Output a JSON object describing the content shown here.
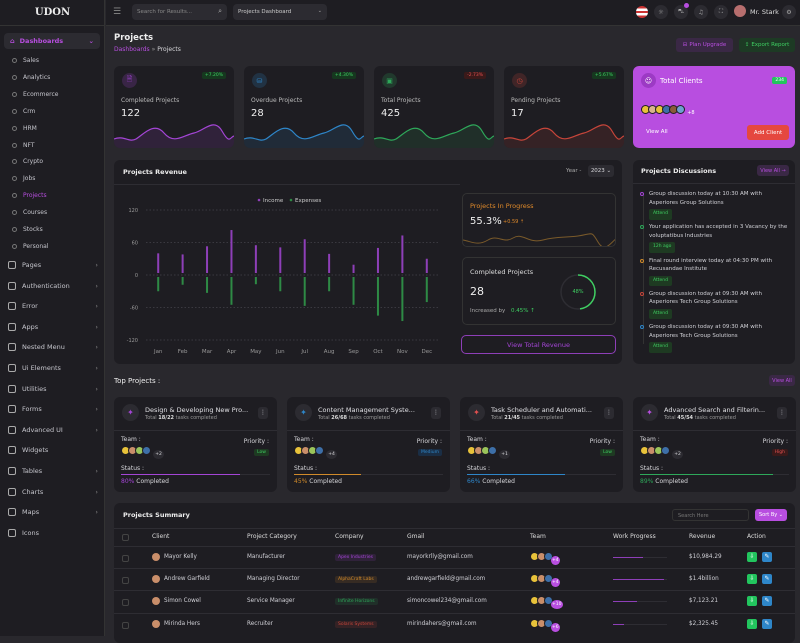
{
  "brand": "UDON",
  "header": {
    "search_placeholder": "Search for Results...",
    "dashboard_select": "Projects Dashboard",
    "user": "Mr. Stark",
    "cart_badge": "5"
  },
  "sidebar": {
    "active": "Dashboards",
    "subitems": [
      "Sales",
      "Analytics",
      "Ecommerce",
      "Crm",
      "HRM",
      "NFT",
      "Crypto",
      "Jobs",
      "Projects",
      "Courses",
      "Stocks",
      "Personal"
    ],
    "active_sub": "Projects",
    "menu": [
      "Pages",
      "Authentication",
      "Error",
      "Apps",
      "Nested Menu",
      "Ui Elements",
      "Utilities",
      "Forms",
      "Advanced UI",
      "Widgets",
      "Tables",
      "Charts",
      "Maps",
      "Icons"
    ]
  },
  "page": {
    "title": "Projects",
    "breadcrumb": [
      "Dashboards",
      "Projects"
    ],
    "plan_upgrade": "Plan Upgrade",
    "export_report": "Export Report"
  },
  "stats": [
    {
      "label": "Completed Projects",
      "value": "122",
      "change": "+7.20%",
      "color": "#a445d6",
      "trend": "up"
    },
    {
      "label": "Overdue Projects",
      "value": "28",
      "change": "+4.30%",
      "color": "#2e86c9",
      "trend": "up"
    },
    {
      "label": "Total Projects",
      "value": "425",
      "change": "-2.73%",
      "color": "#2ea85a",
      "trend": "down"
    },
    {
      "label": "Pending Projects",
      "value": "17",
      "change": "+5.67%",
      "color": "#c7453a",
      "trend": "up"
    }
  ],
  "clients": {
    "title": "Total Clients",
    "count": "234",
    "more": "+8",
    "view_all": "View All",
    "add": "Add Client"
  },
  "revenue": {
    "title": "Projects Revenue",
    "year_label": "Year -",
    "year": "2023",
    "in_progress": {
      "title": "Projects In Progress",
      "value": "55.3%",
      "change": "+0.59"
    },
    "completed": {
      "title": "Completed Projects",
      "value": "28",
      "increased_label": "Increased by",
      "increase": "0.45%",
      "ring": "48%",
      "ring_value": 48
    },
    "view_total": "View Total Revenue"
  },
  "chart_data": {
    "type": "bar",
    "categories": [
      "Jan",
      "Feb",
      "Mar",
      "Apr",
      "May",
      "Jun",
      "Jul",
      "Aug",
      "Sep",
      "Oct",
      "Nov",
      "Dec"
    ],
    "series": [
      {
        "name": "Income",
        "color": "#8e3fb8",
        "values": [
          40,
          38,
          53,
          83,
          55,
          51,
          66,
          39,
          19,
          50,
          73,
          30
        ]
      },
      {
        "name": "Expenses",
        "color": "#2e8a45",
        "values": [
          -30,
          -18,
          -33,
          -55,
          -17,
          -30,
          -57,
          -30,
          -55,
          -75,
          -85,
          -50
        ]
      }
    ],
    "yticks": [
      "120",
      "60",
      "0",
      "-60",
      "-120"
    ],
    "ylim": [
      -120,
      120
    ],
    "grid": true,
    "legend": "top"
  },
  "discussions": {
    "title": "Projects Discussions",
    "view_all": "View All →",
    "items": [
      {
        "text": "Group discussion today at 10:30 AM with Asperiores Group Solutions",
        "tag": "Attend",
        "color": "#a445d6"
      },
      {
        "text": "Your application has accepted in 3 Vacancy by the voluptatibus Industries",
        "tag": "12h ago",
        "color": "#2ea85a"
      },
      {
        "text": "Final round interview today at 04:30 PM with Recusandae Institute",
        "tag": "Attend",
        "color": "#d08a2a"
      },
      {
        "text": "Group discussion today at 09:30 AM with Asperiores Tech Group Solutions",
        "tag": "Attend",
        "color": "#c7453a"
      },
      {
        "text": "Group discussion today at 09:30 AM with Asperiores Tech Group Solutions",
        "tag": "Attend",
        "color": "#2e86c9"
      }
    ]
  },
  "top_projects": {
    "title": "Top Projects :",
    "view_all": "View All",
    "team_label": "Team :",
    "priority_label": "Priority :",
    "status_label": "Status :",
    "completed_word": "Completed",
    "items": [
      {
        "name": "Design & Developing New Pro...",
        "done": "18/22",
        "team_more": "+2",
        "priority": "Low",
        "progress": "80%",
        "pct": 80,
        "color": "#a445d6"
      },
      {
        "name": "Content Management Syste...",
        "done": "26/68",
        "team_more": "+4",
        "priority": "Medium",
        "progress": "45%",
        "pct": 45,
        "color": "#d08a2a"
      },
      {
        "name": "Task Scheduler and Automati...",
        "done": "21/45",
        "team_more": "+1",
        "priority": "Low",
        "progress": "66%",
        "pct": 66,
        "color": "#2e86c9"
      },
      {
        "name": "Advanced Search and Filterin...",
        "done": "45/54",
        "team_more": "+2",
        "priority": "High",
        "progress": "89%",
        "pct": 89,
        "color": "#2ea85a"
      }
    ],
    "total_word": "Total",
    "tasks_word": "tasks completed"
  },
  "summary": {
    "title": "Projects Summary",
    "search_placeholder": "Search Here",
    "sort": "Sort By",
    "columns": [
      "Client",
      "Project Category",
      "Company",
      "Gmail",
      "Team",
      "Work Progress",
      "Revenue",
      "Action"
    ],
    "rows": [
      {
        "client": "Mayor Kelly",
        "category": "Manufacturer",
        "company": "Apex Industries",
        "company_color": "#a445d6",
        "gmail": "mayorkrlly@gmail.com",
        "team_more": "+4",
        "progress": 55,
        "revenue": "$10,984.29"
      },
      {
        "client": "Andrew Garfield",
        "category": "Managing Director",
        "company": "AlphaCraft Labs",
        "company_color": "#d08a2a",
        "gmail": "andrewgarfield@gmail.com",
        "team_more": "+4",
        "progress": 95,
        "revenue": "$1.4billion"
      },
      {
        "client": "Simon Cowel",
        "category": "Service Manager",
        "company": "Infinite Horizons",
        "company_color": "#2ea85a",
        "gmail": "simoncowel234@gmail.com",
        "team_more": "+10",
        "progress": 45,
        "revenue": "$7,123.21"
      },
      {
        "client": "Mirinda Hers",
        "category": "Recruiter",
        "company": "Solaris Systems",
        "company_color": "#c7453a",
        "gmail": "mirindahers@gmail.com",
        "team_more": "+6",
        "progress": 20,
        "revenue": "$2,325.45"
      }
    ]
  }
}
